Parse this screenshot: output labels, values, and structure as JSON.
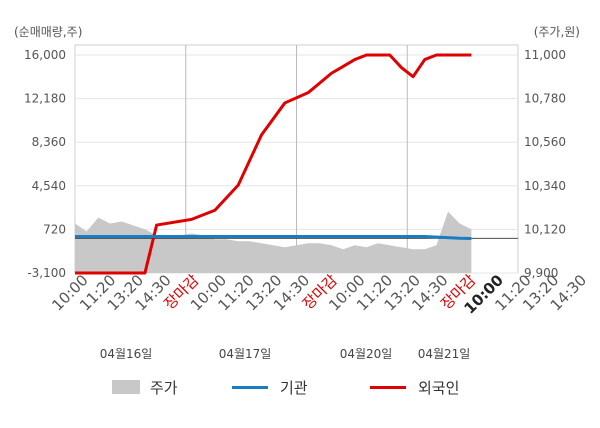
{
  "chart_data": {
    "type": "line",
    "left_axis_unit": "(순매매량,주)",
    "right_axis_unit": "(주가,원)",
    "left_axis": {
      "ticks": [
        16000,
        12180,
        8360,
        4540,
        720,
        -3100
      ],
      "tick_labels": [
        "16,000",
        "12,180",
        "8,360",
        "4,540",
        "720",
        "-3,100"
      ],
      "ylim": [
        -3100,
        16000
      ]
    },
    "right_axis": {
      "ticks": [
        11000,
        10780,
        10560,
        10340,
        10120,
        9900
      ],
      "tick_labels": [
        "11,000",
        "10,780",
        "10,560",
        "10,340",
        "10,120",
        "9,900"
      ],
      "ylim": [
        9900,
        11000
      ]
    },
    "x_tick_labels": [
      "10:00",
      "11:20",
      "13:20",
      "14:30",
      "장마감",
      "10:00",
      "11:20",
      "13:20",
      "14:30",
      "장마감",
      "10:00",
      "11:20",
      "13:20",
      "14:30",
      "장마감",
      "10:00",
      "11:20",
      "13:20",
      "14:30"
    ],
    "date_labels": [
      "04월16일",
      "04월17일",
      "04월20일",
      "04월21일"
    ],
    "legend": [
      {
        "label": "주가",
        "color": "#c8c8c8",
        "kind": "area"
      },
      {
        "label": "기관",
        "color": "#1a7cc1",
        "kind": "line"
      },
      {
        "label": "외국인",
        "color": "#e00000",
        "kind": "line"
      }
    ],
    "series": [
      {
        "name": "외국인",
        "axis": "left",
        "color": "#e00000",
        "x": [
          0,
          2,
          4,
          6,
          7,
          10,
          12,
          14,
          16,
          18,
          20,
          22,
          23,
          24,
          25,
          26,
          27,
          28,
          29,
          30,
          31,
          33,
          34
        ],
        "values": [
          -3100,
          -3100,
          -3100,
          -3100,
          1100,
          1600,
          2400,
          4600,
          9000,
          11800,
          12700,
          14400,
          15000,
          15600,
          16100,
          16000,
          16200,
          14900,
          14100,
          15600,
          16500,
          17200,
          17400
        ]
      },
      {
        "name": "기관",
        "axis": "left",
        "color": "#1a7cc1",
        "x": [
          0,
          5,
          10,
          15,
          20,
          25,
          30,
          33,
          34
        ],
        "values": [
          100,
          100,
          100,
          100,
          100,
          100,
          100,
          -60,
          -80
        ]
      },
      {
        "name": "주가",
        "axis": "right",
        "color": "#c8c8c8",
        "x": [
          0,
          1,
          2,
          3,
          4,
          5,
          6,
          7,
          8,
          9,
          10,
          11,
          12,
          13,
          14,
          15,
          16,
          17,
          18,
          19,
          20,
          21,
          22,
          23,
          24,
          25,
          26,
          27,
          28,
          29,
          30,
          31,
          32,
          33,
          34
        ],
        "values": [
          10150,
          10110,
          10180,
          10150,
          10160,
          10140,
          10120,
          10090,
          10080,
          10090,
          10100,
          10090,
          10070,
          10070,
          10060,
          10060,
          10050,
          10040,
          10030,
          10040,
          10050,
          10050,
          10040,
          10020,
          10040,
          10030,
          10050,
          10040,
          10030,
          10020,
          10020,
          10040,
          10210,
          10150,
          10120
        ]
      }
    ]
  }
}
